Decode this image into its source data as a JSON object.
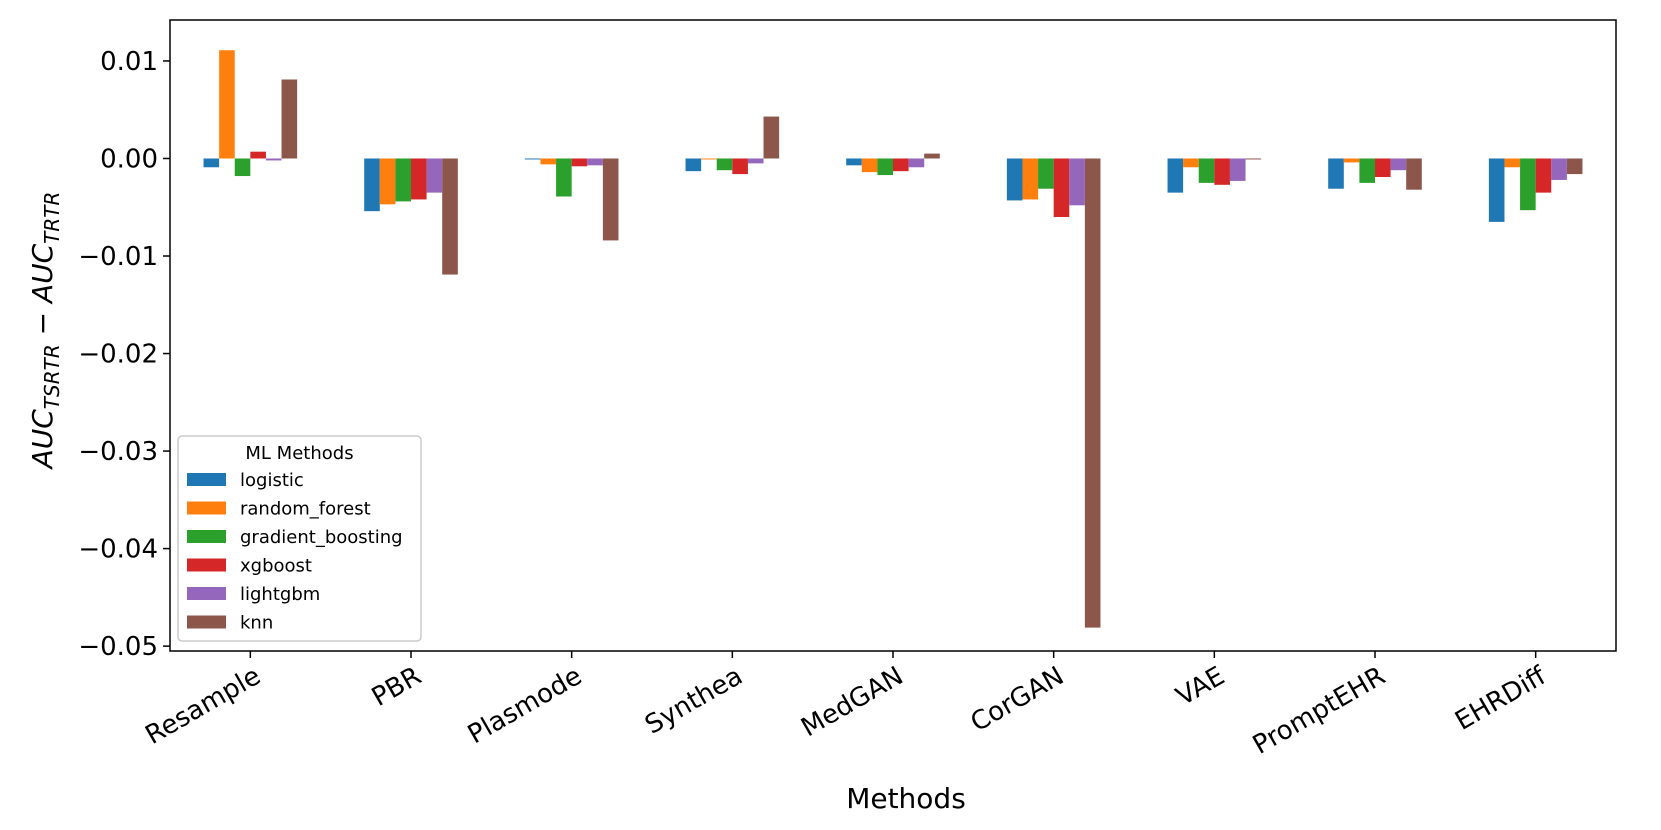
{
  "chart_data": {
    "type": "bar",
    "title": "",
    "xlabel": "Methods",
    "ylabel_main": "AUC",
    "ylabel_sub1": "TSRTR",
    "ylabel_minus": " − ",
    "ylabel_sub2": "TRTR",
    "ylim": [
      -0.0505,
      0.0142
    ],
    "yticks": [
      0.01,
      0.0,
      -0.01,
      -0.02,
      -0.03,
      -0.04,
      -0.05
    ],
    "ytick_labels": [
      "0.01",
      "0.00",
      "−0.01",
      "−0.02",
      "−0.03",
      "−0.04",
      "−0.05"
    ],
    "categories": [
      "Resample",
      "PBR",
      "Plasmode",
      "Synthea",
      "MedGAN",
      "CorGAN",
      "VAE",
      "PromptEHR",
      "EHRDiff"
    ],
    "legend_title": "ML Methods",
    "legend_position": "lower-left",
    "grid": false,
    "series": [
      {
        "name": "logistic",
        "color": "#1f77b4",
        "values": [
          -0.0009,
          -0.0054,
          -0.0001,
          -0.0013,
          -0.0007,
          -0.0043,
          -0.0035,
          -0.0031,
          -0.0065
        ]
      },
      {
        "name": "random_forest",
        "color": "#ff7f0e",
        "values": [
          0.0111,
          -0.0047,
          -0.0006,
          -0.0001,
          -0.0014,
          -0.0042,
          -0.0009,
          -0.0004,
          -0.0009
        ]
      },
      {
        "name": "gradient_boosting",
        "color": "#2ca02c",
        "values": [
          -0.0018,
          -0.0044,
          -0.0039,
          -0.0012,
          -0.0017,
          -0.0031,
          -0.0025,
          -0.0025,
          -0.0053
        ]
      },
      {
        "name": "xgboost",
        "color": "#d62728",
        "values": [
          0.0007,
          -0.0042,
          -0.0008,
          -0.0016,
          -0.0013,
          -0.006,
          -0.0027,
          -0.0019,
          -0.0035
        ]
      },
      {
        "name": "lightgbm",
        "color": "#9467bd",
        "values": [
          -0.0002,
          -0.0035,
          -0.0007,
          -0.0005,
          -0.0009,
          -0.0048,
          -0.0023,
          -0.0012,
          -0.0022
        ]
      },
      {
        "name": "knn",
        "color": "#8c564b",
        "values": [
          0.0081,
          -0.0119,
          -0.0084,
          0.0043,
          0.0005,
          -0.0481,
          -0.0001,
          -0.0032,
          -0.0016
        ]
      }
    ]
  }
}
